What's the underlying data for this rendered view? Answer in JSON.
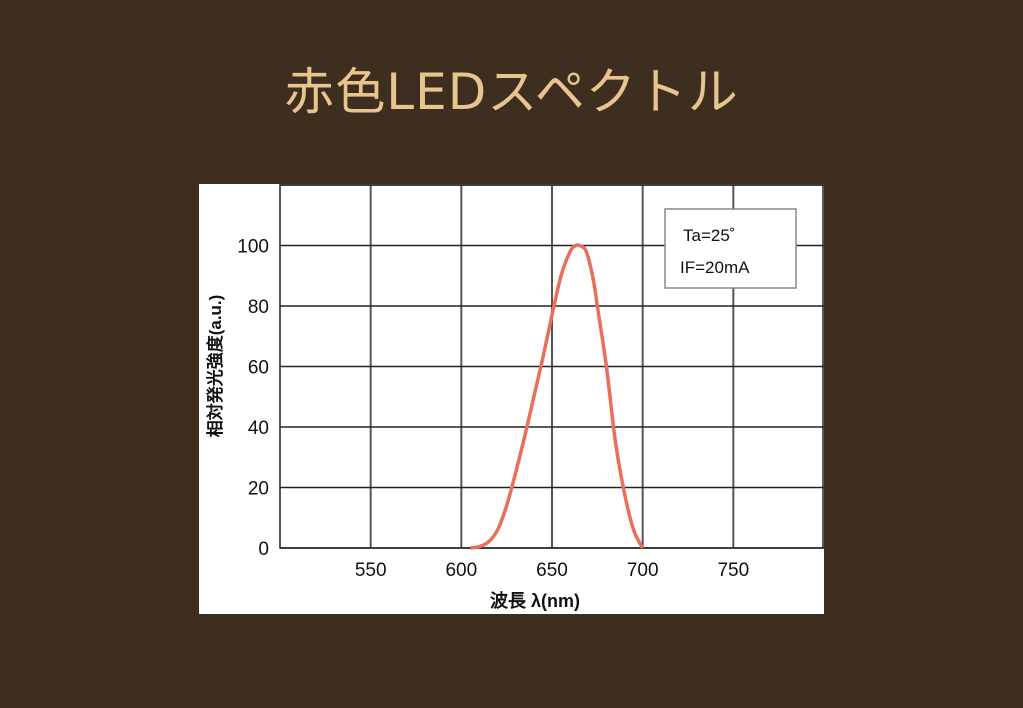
{
  "slide": {
    "title": "赤色LEDスペクトル"
  },
  "chart_data": {
    "type": "line",
    "xlabel": "波長 λ(nm)",
    "ylabel": "相対発光強度(a.u.)",
    "xlim": [
      500,
      800
    ],
    "ylim": [
      0,
      120
    ],
    "x_ticks": [
      550,
      600,
      650,
      700,
      750
    ],
    "y_ticks": [
      0,
      20,
      40,
      60,
      80,
      100
    ],
    "grid": true,
    "legend_box": {
      "line1": "Ta=25˚",
      "line2": "IF=20mA",
      "position": "top-right"
    },
    "series": [
      {
        "color": "#e8705a",
        "x": [
          605,
          610,
          615,
          620,
          625,
          630,
          635,
          640,
          645,
          650,
          655,
          660,
          663,
          665,
          668,
          670,
          673,
          675,
          680,
          685,
          690,
          695,
          700
        ],
        "y": [
          0,
          0.5,
          2,
          6,
          14,
          25,
          37,
          50,
          63,
          77,
          90,
          98,
          100,
          100,
          99,
          96,
          88,
          80,
          60,
          35,
          18,
          6,
          0
        ]
      }
    ]
  }
}
